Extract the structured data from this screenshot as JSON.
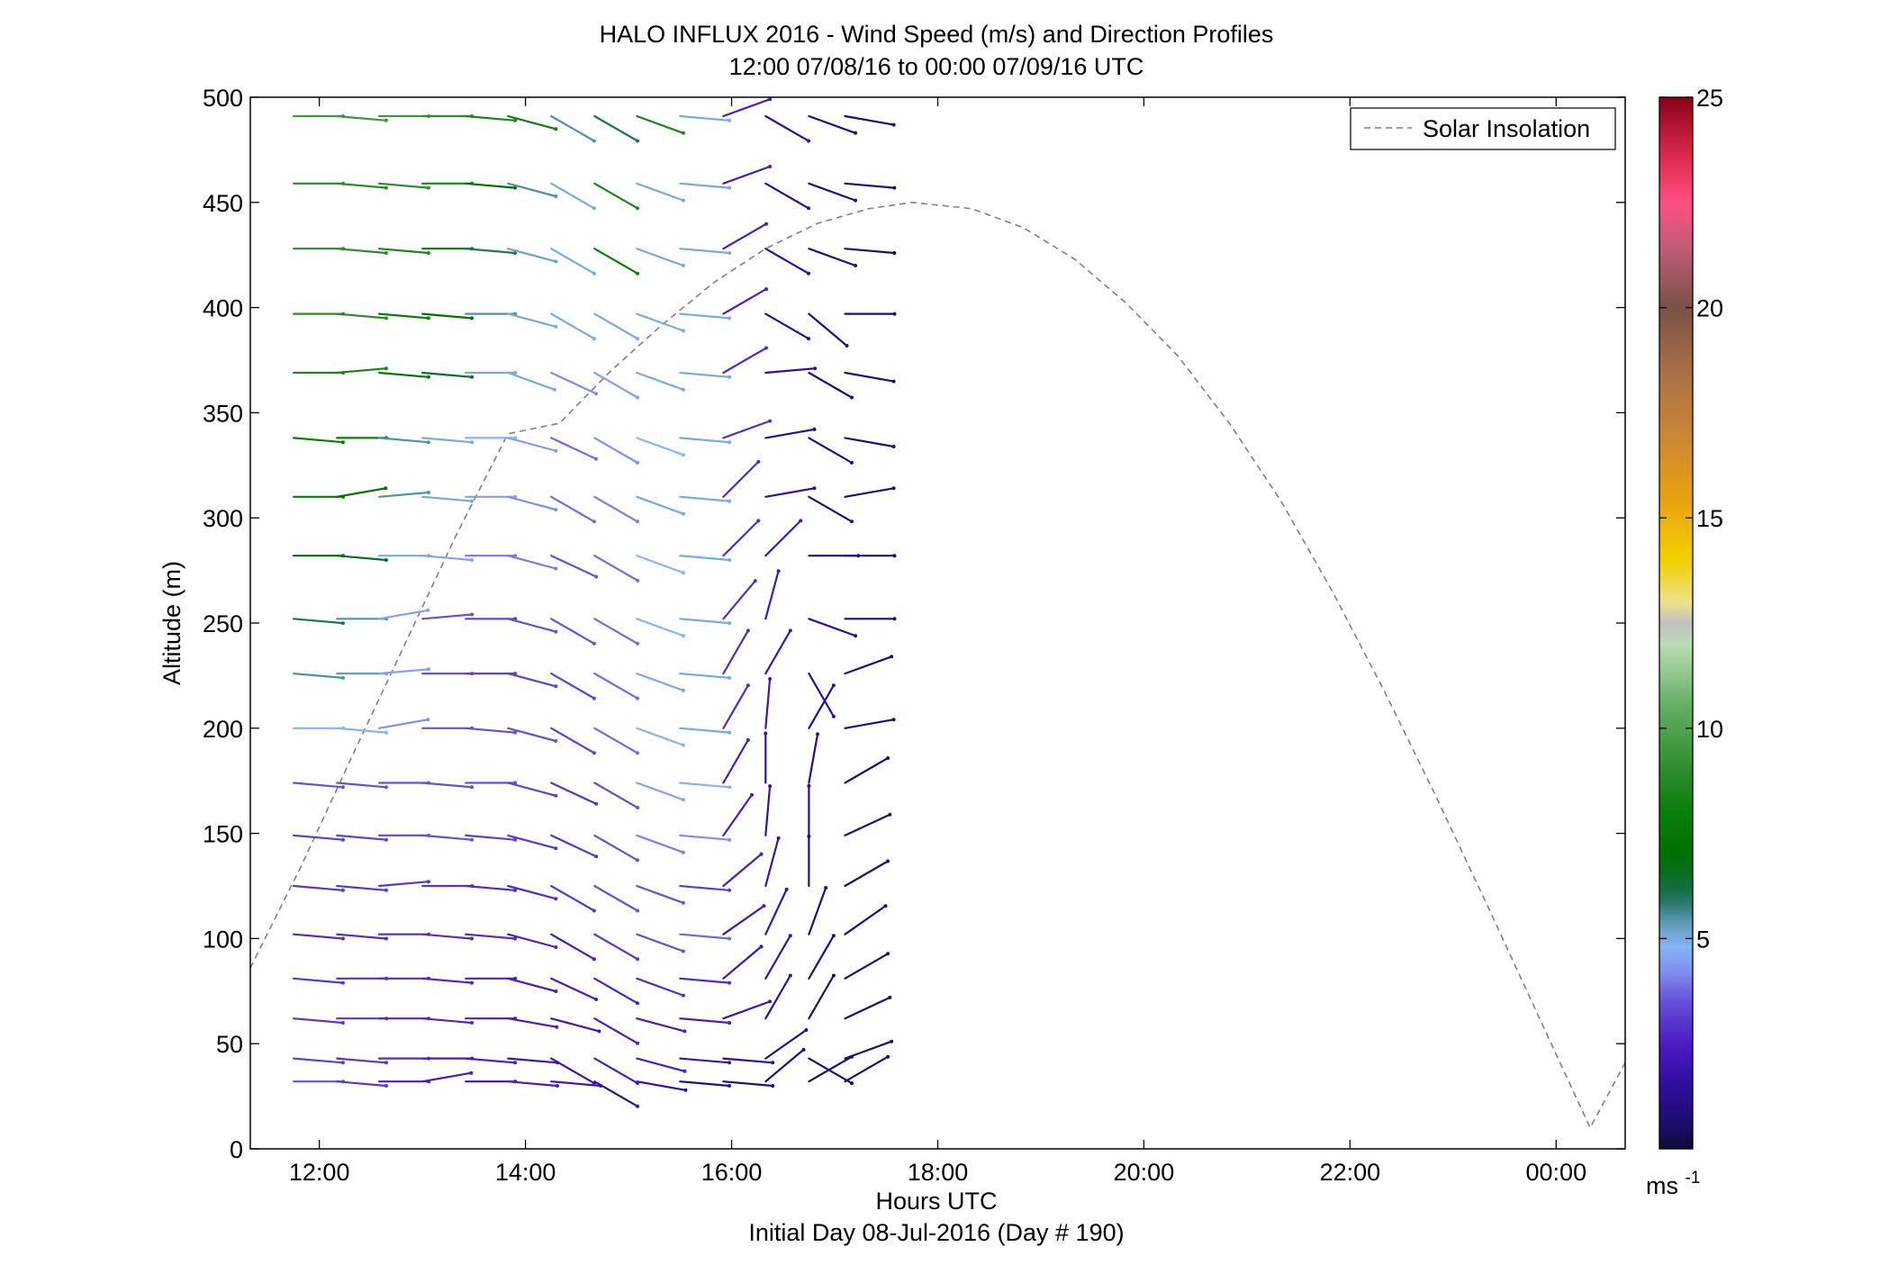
{
  "chart_data": {
    "type": "wind-profile",
    "title": "HALO INFLUX 2016 - Wind Speed (m/s) and Direction Profiles",
    "subtitle": "12:00 07/08/16 to 00:00 07/09/16  UTC",
    "xlabel": "Hours UTC",
    "xlabel2": "Initial Day 08-Jul-2016 (Day # 190)",
    "ylabel": "Altitude (m)",
    "xlim_hours": [
      11.33,
      24.67
    ],
    "ylim": [
      0,
      500
    ],
    "xticks": [
      {
        "hour": 12,
        "label": "12:00"
      },
      {
        "hour": 14,
        "label": "14:00"
      },
      {
        "hour": 16,
        "label": "16:00"
      },
      {
        "hour": 18,
        "label": "18:00"
      },
      {
        "hour": 20,
        "label": "20:00"
      },
      {
        "hour": 22,
        "label": "22:00"
      },
      {
        "hour": 24,
        "label": "00:00"
      }
    ],
    "yticks": [
      0,
      50,
      100,
      150,
      200,
      250,
      300,
      350,
      400,
      450,
      500
    ],
    "grid": false,
    "legend": {
      "position": "top-right",
      "entries": [
        {
          "name": "Solar Insolation",
          "style": "dashed",
          "color": "#808080"
        }
      ]
    },
    "colorbar": {
      "min": 0,
      "max": 25,
      "ticks": [
        5,
        10,
        15,
        20,
        25
      ],
      "unit": "ms",
      "unit_exp": "-1"
    },
    "solar_insolation": {
      "hours": [
        11.33,
        11.83,
        12.33,
        12.83,
        13.33,
        13.83,
        14.33,
        14.83,
        15.33,
        15.83,
        16.33,
        16.83,
        17.33,
        17.75,
        18.33,
        18.83,
        19.33,
        19.83,
        20.33,
        20.83,
        21.33,
        21.83,
        22.33,
        22.83,
        23.33,
        23.83,
        24.33,
        24.67
      ],
      "altitude_scaled": [
        86,
        135,
        188,
        240,
        292,
        340,
        345,
        370,
        392,
        412,
        428,
        440,
        447,
        450,
        447,
        438,
        423,
        402,
        377,
        345,
        308,
        265,
        218,
        168,
        116,
        63,
        10,
        41
      ]
    },
    "altitudes": [
      32,
      43,
      62,
      81,
      102,
      125,
      149,
      174,
      200,
      226,
      252,
      282,
      310,
      338,
      369,
      397,
      428,
      459,
      491
    ],
    "barb_times": [
      11.75,
      12.17,
      12.58,
      13.0,
      13.42,
      13.83,
      14.25,
      14.67,
      15.08,
      15.5,
      15.92,
      16.33,
      16.75,
      17.1
    ],
    "speed_grid": [
      [
        3.5,
        3.0,
        2.5,
        2.5,
        2.0,
        2.5,
        2.0,
        1.5,
        1.5,
        1.0,
        0.8,
        0.8,
        0.6,
        0.6
      ],
      [
        3.2,
        3.0,
        2.8,
        2.5,
        2.5,
        2.0,
        2.0,
        2.5,
        2.5,
        2.0,
        1.5,
        1.0,
        0.7,
        0.6
      ],
      [
        3.0,
        3.0,
        2.8,
        2.7,
        2.5,
        2.5,
        2.2,
        2.5,
        2.5,
        2.5,
        2.0,
        1.5,
        0.8,
        0.6
      ],
      [
        3.0,
        2.9,
        2.8,
        2.7,
        2.6,
        2.5,
        2.5,
        2.6,
        2.8,
        2.8,
        2.0,
        1.8,
        1.0,
        0.8
      ],
      [
        2.8,
        2.8,
        2.8,
        2.8,
        2.8,
        2.6,
        2.5,
        3.0,
        3.5,
        3.8,
        2.2,
        1.8,
        1.0,
        0.8
      ],
      [
        3.0,
        3.0,
        3.0,
        3.0,
        2.8,
        2.8,
        3.0,
        3.5,
        3.5,
        3.2,
        2.5,
        1.8,
        1.0,
        0.8
      ],
      [
        3.2,
        3.2,
        3.5,
        3.5,
        3.2,
        3.0,
        3.0,
        3.5,
        4.0,
        4.2,
        2.5,
        1.8,
        1.2,
        0.8
      ],
      [
        3.5,
        3.5,
        3.5,
        3.5,
        3.5,
        3.2,
        3.0,
        3.5,
        4.5,
        4.8,
        2.5,
        1.8,
        1.2,
        0.8
      ],
      [
        4.8,
        4.8,
        4.2,
        3.5,
        3.5,
        3.5,
        3.2,
        3.8,
        4.8,
        5.0,
        2.8,
        2.0,
        1.2,
        0.8
      ],
      [
        5.5,
        5.3,
        4.5,
        3.5,
        3.2,
        3.2,
        3.2,
        3.8,
        4.5,
        5.0,
        2.8,
        2.0,
        1.5,
        0.8
      ],
      [
        6.0,
        5.5,
        4.5,
        3.5,
        3.2,
        3.5,
        3.5,
        3.8,
        4.8,
        5.0,
        2.8,
        2.2,
        1.5,
        0.8
      ],
      [
        7.0,
        6.5,
        5.0,
        4.5,
        4.0,
        4.0,
        3.5,
        3.8,
        4.8,
        5.0,
        2.8,
        2.2,
        1.0,
        0.8
      ],
      [
        7.5,
        7.0,
        5.5,
        5.0,
        4.5,
        4.2,
        3.8,
        4.0,
        5.0,
        5.0,
        2.8,
        1.5,
        1.0,
        0.8
      ],
      [
        8.0,
        8.0,
        5.5,
        5.0,
        4.8,
        4.5,
        3.8,
        4.2,
        4.8,
        5.0,
        2.8,
        1.0,
        1.0,
        0.8
      ],
      [
        8.5,
        8.5,
        7.5,
        6.5,
        5.0,
        5.0,
        4.2,
        4.5,
        5.0,
        5.0,
        2.8,
        1.5,
        1.0,
        0.8
      ],
      [
        9.0,
        9.0,
        8.0,
        7.0,
        5.5,
        5.0,
        5.0,
        4.5,
        5.0,
        5.0,
        2.5,
        1.5,
        1.0,
        0.8
      ],
      [
        9.0,
        9.0,
        8.5,
        7.5,
        6.0,
        5.2,
        5.0,
        8.0,
        5.0,
        5.0,
        2.5,
        1.5,
        1.0,
        0.8
      ],
      [
        9.0,
        9.0,
        9.0,
        8.5,
        7.0,
        5.5,
        5.0,
        8.5,
        5.0,
        5.0,
        2.5,
        1.5,
        1.0,
        0.8
      ],
      [
        9.5,
        9.5,
        9.5,
        9.0,
        8.5,
        8.0,
        5.5,
        6.0,
        8.5,
        5.0,
        2.5,
        1.5,
        1.0,
        0.8
      ]
    ],
    "direction_grid_deg": [
      [
        270,
        275,
        270,
        260,
        270,
        275,
        275,
        300,
        280,
        275,
        275,
        230,
        240,
        240
      ],
      [
        275,
        275,
        270,
        270,
        275,
        275,
        300,
        300,
        285,
        275,
        275,
        235,
        300,
        250
      ],
      [
        275,
        270,
        270,
        275,
        270,
        280,
        285,
        300,
        285,
        275,
        250,
        210,
        210,
        245
      ],
      [
        275,
        270,
        270,
        275,
        270,
        285,
        295,
        300,
        290,
        275,
        230,
        210,
        210,
        240
      ],
      [
        275,
        275,
        270,
        275,
        275,
        285,
        300,
        300,
        290,
        275,
        235,
        205,
        200,
        235
      ],
      [
        275,
        275,
        265,
        270,
        275,
        285,
        300,
        300,
        290,
        275,
        230,
        195,
        180,
        240
      ],
      [
        275,
        275,
        270,
        275,
        275,
        285,
        295,
        300,
        290,
        275,
        215,
        185,
        180,
        245
      ],
      [
        275,
        275,
        270,
        275,
        270,
        285,
        295,
        300,
        290,
        275,
        210,
        180,
        190,
        240
      ],
      [
        270,
        275,
        260,
        270,
        275,
        285,
        300,
        300,
        290,
        275,
        210,
        185,
        210,
        260
      ],
      [
        275,
        270,
        265,
        270,
        270,
        285,
        300,
        300,
        290,
        275,
        210,
        210,
        330,
        250
      ],
      [
        275,
        270,
        260,
        265,
        270,
        285,
        300,
        300,
        290,
        275,
        220,
        195,
        290,
        270
      ],
      [
        270,
        275,
        270,
        275,
        270,
        285,
        295,
        300,
        290,
        275,
        225,
        225,
        270,
        270
      ],
      [
        270,
        260,
        265,
        275,
        270,
        285,
        300,
        300,
        290,
        275,
        225,
        260,
        300,
        260
      ],
      [
        275,
        270,
        275,
        275,
        270,
        285,
        295,
        300,
        290,
        275,
        250,
        260,
        300,
        280
      ],
      [
        270,
        265,
        275,
        275,
        270,
        290,
        295,
        300,
        290,
        275,
        240,
        265,
        300,
        280
      ],
      [
        270,
        275,
        275,
        275,
        270,
        285,
        300,
        300,
        290,
        275,
        240,
        300,
        310,
        270
      ],
      [
        270,
        275,
        275,
        270,
        275,
        285,
        300,
        300,
        290,
        275,
        240,
        300,
        290,
        275
      ],
      [
        270,
        275,
        275,
        270,
        275,
        285,
        300,
        300,
        290,
        275,
        250,
        300,
        290,
        275
      ],
      [
        270,
        275,
        270,
        270,
        275,
        285,
        300,
        300,
        290,
        275,
        250,
        300,
        290,
        280
      ]
    ]
  },
  "colors": {
    "axis": "#000000",
    "insolation": "#808080",
    "colormap": [
      [
        0.0,
        "#0b0a35"
      ],
      [
        0.5,
        "#1a0d66"
      ],
      [
        1.5,
        "#2f0d9e"
      ],
      [
        2.5,
        "#4a1cc2"
      ],
      [
        3.5,
        "#6650d8"
      ],
      [
        4.2,
        "#7f8ef0"
      ],
      [
        4.8,
        "#86b4f5"
      ],
      [
        5.4,
        "#5a9ab0"
      ],
      [
        5.8,
        "#2f7a73"
      ],
      [
        6.2,
        "#116d3c"
      ],
      [
        7.0,
        "#007000"
      ],
      [
        8.0,
        "#0a7f0a"
      ],
      [
        9.0,
        "#2d8b2d"
      ],
      [
        10.5,
        "#63ad63"
      ],
      [
        12.0,
        "#b9ddb5"
      ],
      [
        12.5,
        "#c0c0c0"
      ],
      [
        13.0,
        "#f0e08a"
      ],
      [
        14.0,
        "#f2d000"
      ],
      [
        15.5,
        "#e8a012"
      ],
      [
        17.0,
        "#c98636"
      ],
      [
        18.5,
        "#a86f47"
      ],
      [
        20.0,
        "#7a5248"
      ],
      [
        21.5,
        "#c45c78"
      ],
      [
        22.5,
        "#ff4f7f"
      ],
      [
        23.5,
        "#e02c55"
      ],
      [
        25.0,
        "#8a0018"
      ]
    ]
  }
}
